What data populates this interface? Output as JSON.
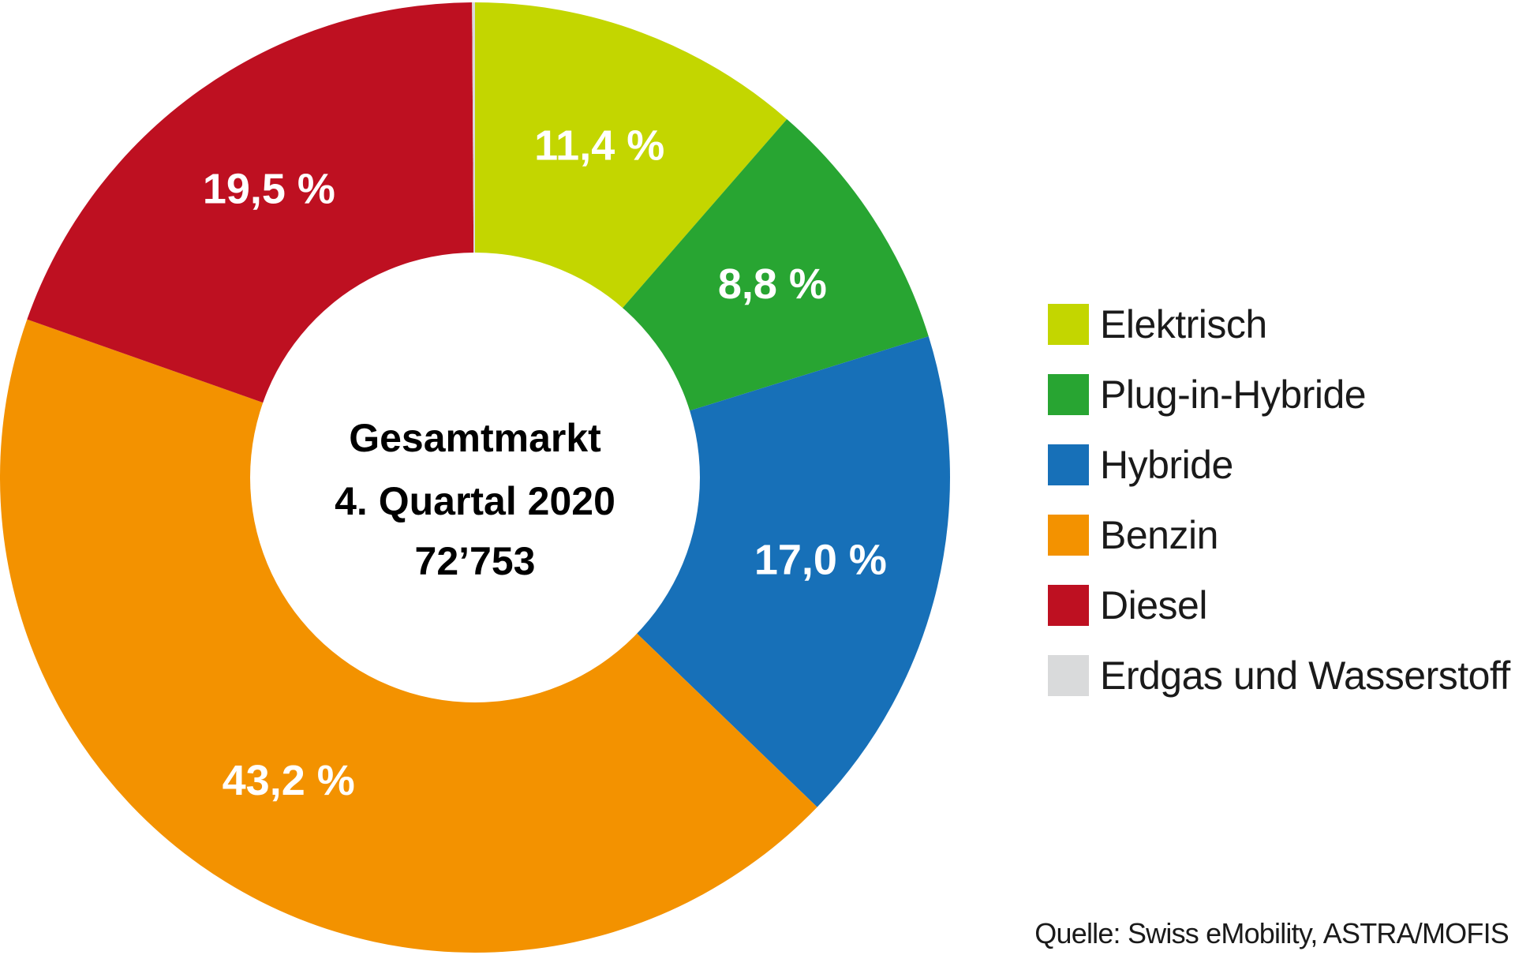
{
  "chart_data": {
    "type": "pie",
    "variant": "donut",
    "center_label": [
      "Gesamtmarkt",
      "4. Quartal 2020",
      "72’753"
    ],
    "slices": [
      {
        "name": "Elektrisch",
        "value": 11.4,
        "label": "11,4 %",
        "color": "#c3d600"
      },
      {
        "name": "Plug-in-Hybride",
        "value": 8.8,
        "label": "8,8 %",
        "color": "#28a532"
      },
      {
        "name": "Hybride",
        "value": 17.0,
        "label": "17,0 %",
        "color": "#1770b8"
      },
      {
        "name": "Benzin",
        "value": 43.2,
        "label": "43,2 %",
        "color": "#f39200"
      },
      {
        "name": "Diesel",
        "value": 19.5,
        "label": "19,5 %",
        "color": "#be1021"
      },
      {
        "name": "Erdgas und Wasserstoff",
        "value": 0.1,
        "label": "",
        "color": "#d9dadb"
      }
    ],
    "legend": {
      "placement": "right",
      "items": [
        {
          "label": "Elektrisch",
          "color": "#c3d600"
        },
        {
          "label": "Plug-in-Hybride",
          "color": "#28a532"
        },
        {
          "label": "Hybride",
          "color": "#1770b8"
        },
        {
          "label": "Benzin",
          "color": "#f39200"
        },
        {
          "label": "Diesel",
          "color": "#be1021"
        },
        {
          "label": "Erdgas und Wasserstoff",
          "color": "#d9dadb"
        }
      ]
    },
    "source": "Quelle: Swiss eMobility, ASTRA/MOFIS"
  }
}
